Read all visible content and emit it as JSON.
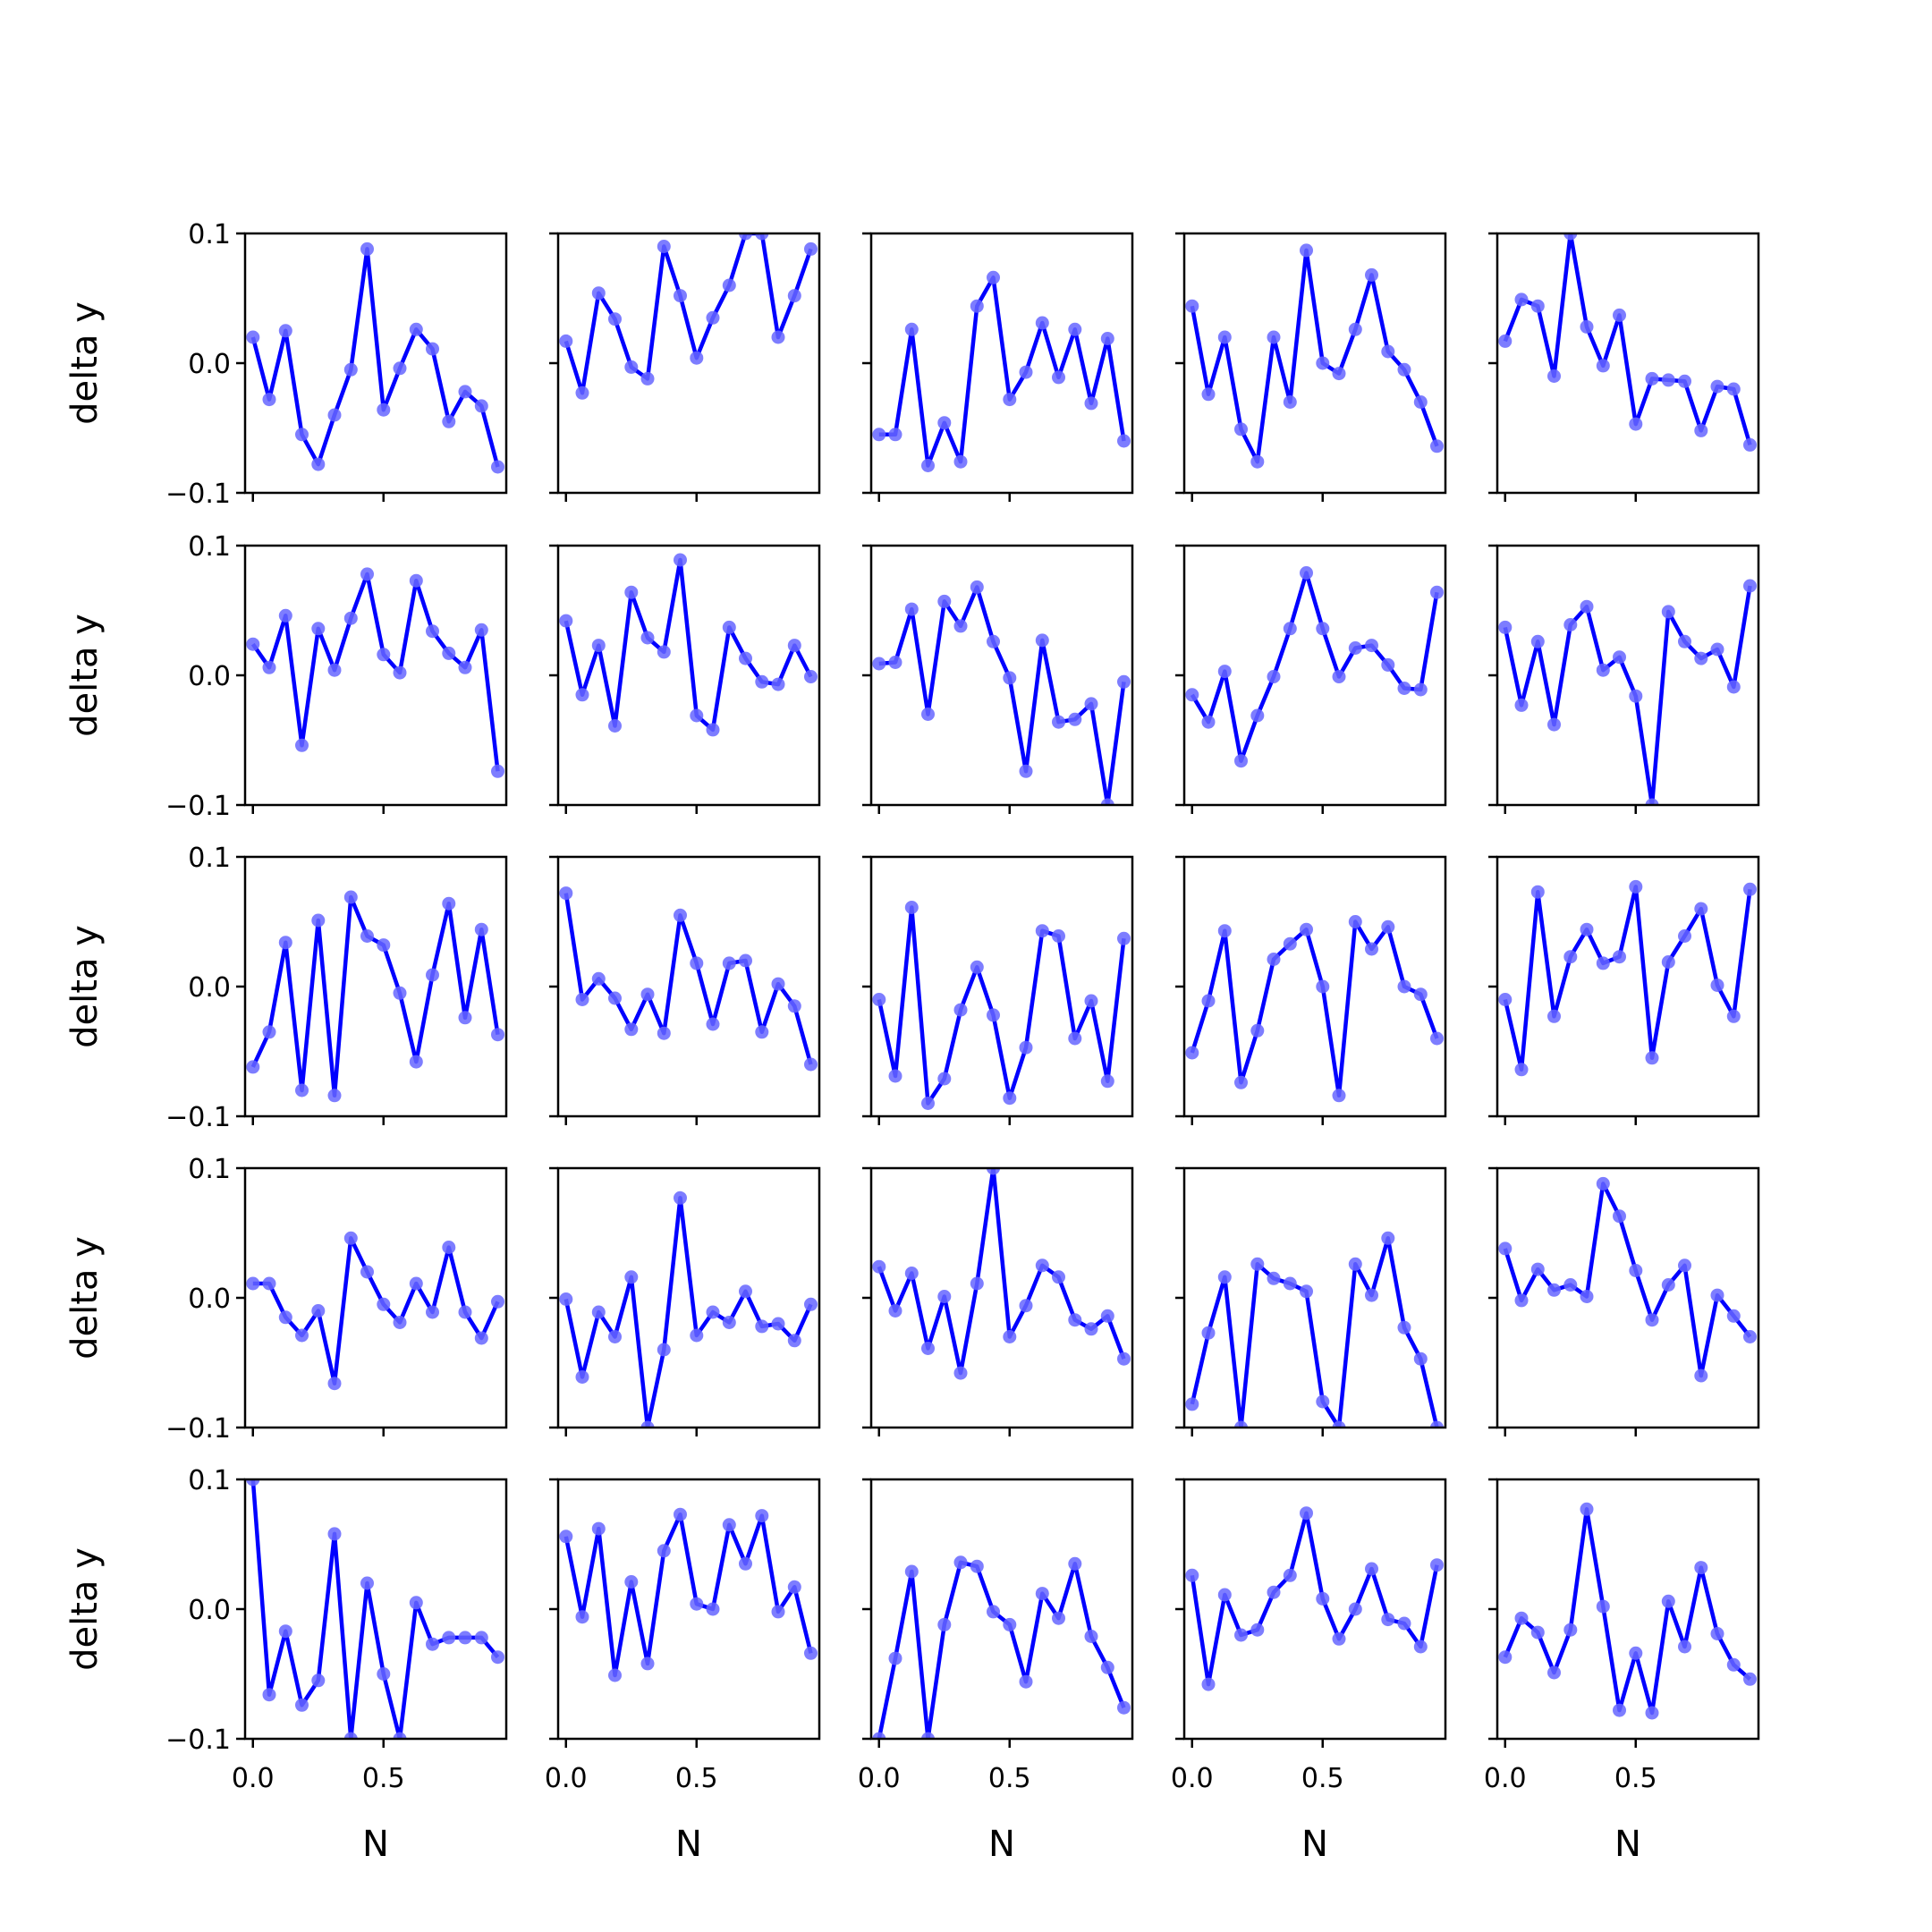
{
  "chart_data": {
    "type": "line",
    "layout": "5x5 grid of small multiples",
    "line_color": "#0000ff",
    "marker_color": "#6666ff",
    "xlabel": "N",
    "ylabel": "delta y",
    "ylim": [
      -0.1,
      0.1
    ],
    "yticks": [
      -0.1,
      0.0,
      0.1
    ],
    "ytick_labels": [
      "−0.1",
      "0.0",
      "0.1"
    ],
    "xlim": [
      -0.03,
      0.97
    ],
    "xticks": [
      0.0,
      0.5
    ],
    "xtick_labels": [
      "0.0",
      "0.5"
    ],
    "x": [
      0.0,
      0.0625,
      0.125,
      0.1875,
      0.25,
      0.3125,
      0.375,
      0.4375,
      0.5,
      0.5625,
      0.625,
      0.6875,
      0.75,
      0.8125,
      0.875,
      0.9375
    ],
    "panels": [
      [
        0.02,
        -0.028,
        0.025,
        -0.055,
        -0.078,
        -0.04,
        -0.005,
        0.088,
        -0.036,
        -0.004,
        0.026,
        0.011,
        -0.045,
        -0.022,
        -0.033,
        -0.08
      ],
      [
        0.017,
        -0.023,
        0.054,
        0.034,
        -0.003,
        -0.012,
        0.09,
        0.052,
        0.004,
        0.035,
        0.06,
        0.1,
        0.1,
        0.02,
        0.052,
        0.088
      ],
      [
        -0.055,
        -0.055,
        0.026,
        -0.079,
        -0.046,
        -0.076,
        0.044,
        0.066,
        -0.028,
        -0.007,
        0.031,
        -0.011,
        0.026,
        -0.031,
        0.019,
        -0.06
      ],
      [
        0.044,
        -0.024,
        0.02,
        -0.051,
        -0.076,
        0.02,
        -0.03,
        0.087,
        0.0,
        -0.008,
        0.026,
        0.068,
        0.009,
        -0.005,
        -0.03,
        -0.064
      ],
      [
        0.017,
        0.049,
        0.044,
        -0.01,
        0.1,
        0.028,
        -0.002,
        0.037,
        -0.047,
        -0.012,
        -0.013,
        -0.014,
        -0.052,
        -0.018,
        -0.02,
        -0.063
      ],
      [
        0.024,
        0.006,
        0.046,
        -0.054,
        0.036,
        0.004,
        0.044,
        0.078,
        0.016,
        0.002,
        0.073,
        0.034,
        0.017,
        0.006,
        0.035,
        -0.074
      ],
      [
        0.042,
        -0.015,
        0.023,
        -0.039,
        0.064,
        0.029,
        0.018,
        0.089,
        -0.031,
        -0.042,
        0.037,
        0.013,
        -0.005,
        -0.007,
        0.023,
        -0.001
      ],
      [
        0.009,
        0.01,
        0.051,
        -0.03,
        0.057,
        0.038,
        0.068,
        0.026,
        -0.002,
        -0.074,
        0.027,
        -0.036,
        -0.034,
        -0.022,
        -0.1,
        -0.005
      ],
      [
        -0.015,
        -0.036,
        0.003,
        -0.066,
        -0.031,
        -0.001,
        0.036,
        0.079,
        0.036,
        -0.001,
        0.021,
        0.023,
        0.008,
        -0.01,
        -0.011,
        0.064
      ],
      [
        0.037,
        -0.023,
        0.026,
        -0.038,
        0.039,
        0.053,
        0.004,
        0.014,
        -0.016,
        -0.1,
        0.049,
        0.026,
        0.013,
        0.02,
        -0.009,
        0.069
      ],
      [
        -0.062,
        -0.035,
        0.034,
        -0.08,
        0.051,
        -0.084,
        0.069,
        0.039,
        0.032,
        -0.005,
        -0.058,
        0.009,
        0.064,
        -0.024,
        0.044,
        -0.037
      ],
      [
        0.072,
        -0.01,
        0.006,
        -0.009,
        -0.033,
        -0.006,
        -0.036,
        0.055,
        0.018,
        -0.029,
        0.018,
        0.02,
        -0.035,
        0.002,
        -0.015,
        -0.06
      ],
      [
        -0.01,
        -0.069,
        0.061,
        -0.09,
        -0.071,
        -0.018,
        0.015,
        -0.022,
        -0.086,
        -0.047,
        0.043,
        0.039,
        -0.04,
        -0.011,
        -0.073,
        0.037
      ],
      [
        -0.051,
        -0.011,
        0.043,
        -0.074,
        -0.034,
        0.021,
        0.033,
        0.044,
        0.0,
        -0.084,
        0.05,
        0.029,
        0.046,
        0.0,
        -0.006,
        -0.04
      ],
      [
        -0.01,
        -0.064,
        0.073,
        -0.023,
        0.023,
        0.044,
        0.018,
        0.023,
        0.077,
        -0.055,
        0.019,
        0.039,
        0.06,
        0.001,
        -0.023,
        0.075
      ],
      [
        0.011,
        0.011,
        -0.015,
        -0.029,
        -0.01,
        -0.066,
        0.046,
        0.02,
        -0.005,
        -0.019,
        0.011,
        -0.011,
        0.039,
        -0.011,
        -0.031,
        -0.003
      ],
      [
        -0.001,
        -0.061,
        -0.011,
        -0.03,
        0.016,
        -0.1,
        -0.04,
        0.077,
        -0.029,
        -0.011,
        -0.019,
        0.005,
        -0.022,
        -0.02,
        -0.033,
        -0.005
      ],
      [
        0.024,
        -0.01,
        0.019,
        -0.039,
        0.001,
        -0.058,
        0.011,
        0.1,
        -0.03,
        -0.006,
        0.025,
        0.016,
        -0.017,
        -0.024,
        -0.014,
        -0.047
      ],
      [
        -0.082,
        -0.027,
        0.016,
        -0.1,
        0.026,
        0.015,
        0.011,
        0.005,
        -0.08,
        -0.1,
        0.026,
        0.002,
        0.046,
        -0.023,
        -0.047,
        -0.1
      ],
      [
        0.038,
        -0.002,
        0.022,
        0.006,
        0.01,
        0.001,
        0.088,
        0.063,
        0.021,
        -0.017,
        0.01,
        0.025,
        -0.06,
        0.002,
        -0.014,
        -0.03
      ],
      [
        0.1,
        -0.066,
        -0.017,
        -0.074,
        -0.055,
        0.058,
        -0.1,
        0.02,
        -0.05,
        -0.1,
        0.005,
        -0.027,
        -0.022,
        -0.022,
        -0.022,
        -0.037
      ],
      [
        0.056,
        -0.006,
        0.062,
        -0.051,
        0.021,
        -0.042,
        0.045,
        0.073,
        0.004,
        0.0,
        0.065,
        0.035,
        0.072,
        -0.002,
        0.017,
        -0.034
      ],
      [
        -0.1,
        -0.038,
        0.029,
        -0.1,
        -0.012,
        0.036,
        0.033,
        -0.002,
        -0.012,
        -0.056,
        0.012,
        -0.007,
        0.035,
        -0.021,
        -0.045,
        -0.076
      ],
      [
        0.026,
        -0.058,
        0.011,
        -0.02,
        -0.016,
        0.013,
        0.026,
        0.074,
        0.008,
        -0.023,
        0.0,
        0.031,
        -0.008,
        -0.011,
        -0.029,
        0.034
      ],
      [
        -0.037,
        -0.007,
        -0.018,
        -0.049,
        -0.016,
        0.077,
        0.002,
        -0.078,
        -0.034,
        -0.08,
        0.006,
        -0.029,
        0.032,
        -0.019,
        -0.043,
        -0.054
      ]
    ]
  }
}
